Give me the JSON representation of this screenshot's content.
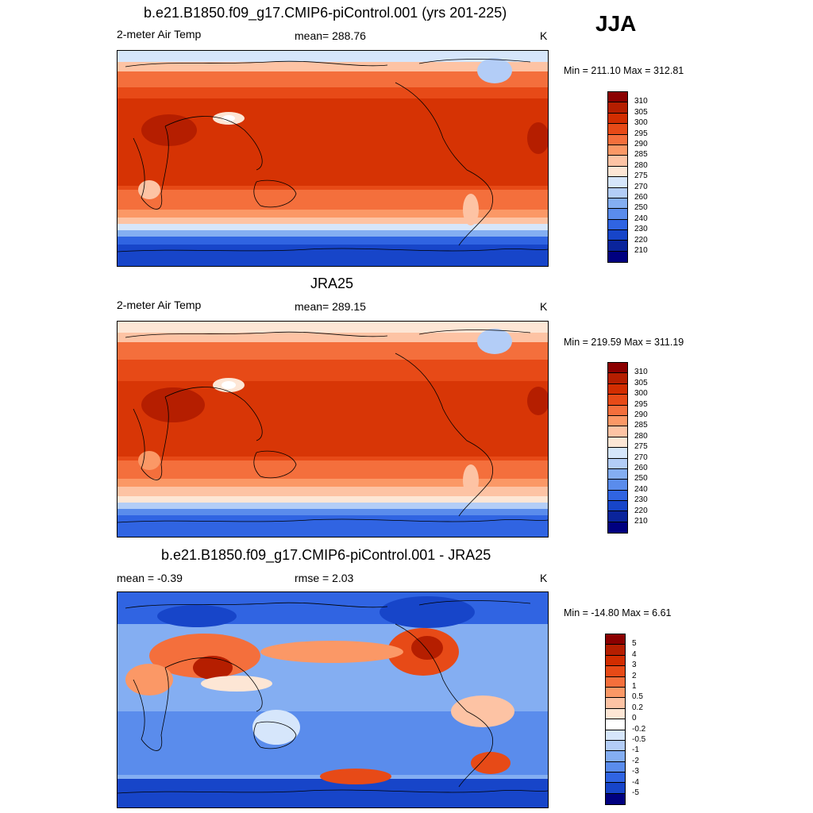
{
  "season": "JJA",
  "panels": [
    {
      "title": "b.e21.B1850.f09_g17.CMIP6-piControl.001 (yrs 201-225)",
      "left_text": "2-meter Air Temp",
      "center_text": "mean= 288.76",
      "units": "K",
      "minmax": "Min = 211.10 Max = 312.81",
      "colorbar": {
        "labels": [
          "310",
          "305",
          "300",
          "295",
          "290",
          "285",
          "280",
          "275",
          "270",
          "260",
          "250",
          "240",
          "230",
          "220",
          "210"
        ],
        "colors": [
          "#8b0000",
          "#b51e00",
          "#d22d00",
          "#e74a17",
          "#f46f3c",
          "#fb9866",
          "#fdc3a4",
          "#fde6d5",
          "#d6e6fb",
          "#b3cdf7",
          "#84aef2",
          "#5a8cec",
          "#3064e2",
          "#1745c9",
          "#0a249b",
          "#000080"
        ]
      }
    },
    {
      "title": "JRA25",
      "left_text": "2-meter Air Temp",
      "center_text": "mean= 289.15",
      "units": "K",
      "minmax": "Min = 219.59 Max = 311.19",
      "colorbar": {
        "labels": [
          "310",
          "305",
          "300",
          "295",
          "290",
          "285",
          "280",
          "275",
          "270",
          "260",
          "250",
          "240",
          "230",
          "220",
          "210"
        ],
        "colors": [
          "#8b0000",
          "#b51e00",
          "#d22d00",
          "#e74a17",
          "#f46f3c",
          "#fb9866",
          "#fdc3a4",
          "#fde6d5",
          "#d6e6fb",
          "#b3cdf7",
          "#84aef2",
          "#5a8cec",
          "#3064e2",
          "#1745c9",
          "#0a249b",
          "#000080"
        ]
      }
    },
    {
      "title": "b.e21.B1850.f09_g17.CMIP6-piControl.001 - JRA25",
      "left_text": "mean =  -0.39",
      "center_text": "rmse =   2.03",
      "units": "K",
      "minmax": "Min = -14.80 Max =   6.61",
      "colorbar": {
        "labels": [
          "5",
          "4",
          "3",
          "2",
          "1",
          "0.5",
          "0.2",
          "0",
          "-0.2",
          "-0.5",
          "-1",
          "-2",
          "-3",
          "-4",
          "-5"
        ],
        "colors": [
          "#8b0000",
          "#b51e00",
          "#d22d00",
          "#e74a17",
          "#f46f3c",
          "#fb9866",
          "#fdc3a4",
          "#fde6d5",
          "#ffffff",
          "#d6e6fb",
          "#b3cdf7",
          "#84aef2",
          "#5a8cec",
          "#3064e2",
          "#1745c9",
          "#000080"
        ]
      }
    }
  ]
}
